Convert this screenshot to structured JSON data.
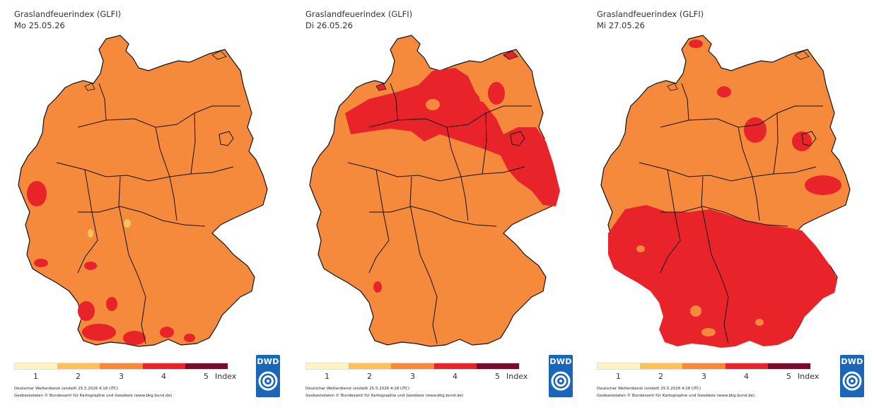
{
  "panels": [
    {
      "title": "Graslandfeuerindex (GLFI)",
      "date": "Mo 25.05.26",
      "level": 3,
      "hotspots": "p0"
    },
    {
      "title": "Graslandfeuerindex (GLFI)",
      "date": "Di 26.05.26",
      "level": 3,
      "hotspots": "p1"
    },
    {
      "title": "Graslandfeuerindex (GLFI)",
      "date": "Mi 27.05.26",
      "level": 3,
      "hotspots": "p2"
    }
  ],
  "legend": {
    "labels": [
      "1",
      "2",
      "3",
      "4",
      "5"
    ],
    "unit": "Index",
    "colors": [
      "#fff5c2",
      "#fcc15a",
      "#f58a3c",
      "#e8232a",
      "#7a0a2a"
    ]
  },
  "credits": {
    "line1": "Deutscher Wetterdienst (erstellt 25.5.2026 4:18 UTC)",
    "line2": "Geobasisdaten © Bundesamt für Kartographie und Geodäsie (www.bkg.bund.de)"
  },
  "logo": {
    "text": "DWD",
    "color": "#1a66b8"
  }
}
